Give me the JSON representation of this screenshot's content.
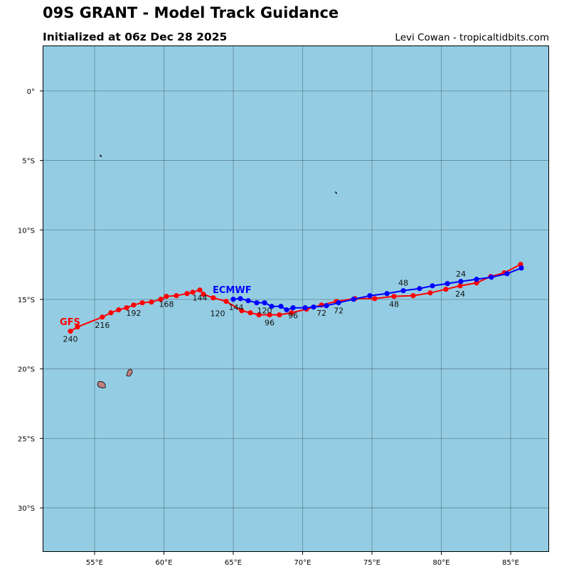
{
  "header": {
    "title": "09S GRANT - Model Track Guidance",
    "subtitle": "Initialized at 06z Dec 28 2025",
    "credit": "Levi Cowan - tropicaltidbits.com"
  },
  "map": {
    "ocean_color": "#94cde3",
    "land_color": "#c08080",
    "lon_range": [
      51.26,
      87.77
    ],
    "lat_range": [
      -33.17,
      3.27
    ],
    "grid": true,
    "lon_ticks": [
      {
        "value": 55,
        "label": "55°E"
      },
      {
        "value": 60,
        "label": "60°E"
      },
      {
        "value": 65,
        "label": "65°E"
      },
      {
        "value": 70,
        "label": "70°E"
      },
      {
        "value": 75,
        "label": "75°E"
      },
      {
        "value": 80,
        "label": "80°E"
      },
      {
        "value": 85,
        "label": "85°E"
      }
    ],
    "lat_ticks": [
      {
        "value": 0,
        "label": "0°"
      },
      {
        "value": -5,
        "label": "5°S"
      },
      {
        "value": -10,
        "label": "10°S"
      },
      {
        "value": -15,
        "label": "15°S"
      },
      {
        "value": -20,
        "label": "20°S"
      },
      {
        "value": -25,
        "label": "25°S"
      },
      {
        "value": -30,
        "label": "30°S"
      }
    ]
  },
  "chart_data": {
    "type": "line",
    "series": [
      {
        "name": "GFS",
        "color": "#ff0000",
        "points": [
          [
            85.72,
            -12.48
          ],
          [
            84.54,
            -13.09
          ],
          [
            83.56,
            -13.35
          ],
          [
            82.54,
            -13.81
          ],
          [
            81.36,
            -14.02
          ],
          [
            80.33,
            -14.27
          ],
          [
            79.2,
            -14.53
          ],
          [
            77.97,
            -14.73
          ],
          [
            76.59,
            -14.78
          ],
          [
            75.2,
            -14.94
          ],
          [
            73.77,
            -14.94
          ],
          [
            72.44,
            -15.14
          ],
          [
            71.36,
            -15.4
          ],
          [
            70.28,
            -15.7
          ],
          [
            69.2,
            -15.96
          ],
          [
            68.33,
            -16.11
          ],
          [
            67.62,
            -16.11
          ],
          [
            66.85,
            -16.11
          ],
          [
            66.23,
            -15.96
          ],
          [
            65.61,
            -15.81
          ],
          [
            64.49,
            -15.14
          ],
          [
            63.56,
            -14.89
          ],
          [
            62.85,
            -14.63
          ],
          [
            62.59,
            -14.32
          ],
          [
            62.08,
            -14.48
          ],
          [
            61.67,
            -14.58
          ],
          [
            60.9,
            -14.73
          ],
          [
            60.18,
            -14.78
          ],
          [
            59.77,
            -14.99
          ],
          [
            59.1,
            -15.19
          ],
          [
            58.44,
            -15.24
          ],
          [
            57.82,
            -15.4
          ],
          [
            57.31,
            -15.6
          ],
          [
            56.74,
            -15.75
          ],
          [
            56.18,
            -15.96
          ],
          [
            55.56,
            -16.27
          ],
          [
            53.77,
            -16.98
          ],
          [
            53.26,
            -17.29
          ]
        ],
        "hour_labels": [
          {
            "hour": "24",
            "lon": 81.36,
            "lat": -14.02
          },
          {
            "hour": "48",
            "lon": 76.59,
            "lat": -14.78
          },
          {
            "hour": "72",
            "lon": 71.36,
            "lat": -15.4
          },
          {
            "hour": "96",
            "lon": 67.62,
            "lat": -16.11
          },
          {
            "hour": "120",
            "lon": 64.49,
            "lat": -15.14
          },
          {
            "hour": "144",
            "lon": 62.59,
            "lat": -14.32
          },
          {
            "hour": "168",
            "lon": 60.18,
            "lat": -14.78
          },
          {
            "hour": "192",
            "lon": 57.82,
            "lat": -15.4
          },
          {
            "hour": "216",
            "lon": 55.56,
            "lat": -16.27
          },
          {
            "hour": "240",
            "lon": 53.26,
            "lat": -17.29
          }
        ]
      },
      {
        "name": "ECMWF",
        "color": "#0000ff",
        "points": [
          [
            85.77,
            -12.74
          ],
          [
            84.74,
            -13.15
          ],
          [
            83.61,
            -13.4
          ],
          [
            82.54,
            -13.55
          ],
          [
            81.41,
            -13.71
          ],
          [
            80.44,
            -13.86
          ],
          [
            79.36,
            -14.02
          ],
          [
            78.43,
            -14.22
          ],
          [
            77.26,
            -14.37
          ],
          [
            76.08,
            -14.58
          ],
          [
            74.85,
            -14.73
          ],
          [
            73.67,
            -14.99
          ],
          [
            72.59,
            -15.24
          ],
          [
            71.72,
            -15.45
          ],
          [
            70.79,
            -15.55
          ],
          [
            70.18,
            -15.6
          ],
          [
            69.31,
            -15.6
          ],
          [
            68.85,
            -15.75
          ],
          [
            68.44,
            -15.5
          ],
          [
            67.77,
            -15.5
          ],
          [
            67.26,
            -15.24
          ],
          [
            66.69,
            -15.24
          ],
          [
            66.08,
            -15.09
          ],
          [
            65.51,
            -14.94
          ],
          [
            65.0,
            -14.99
          ]
        ],
        "hour_labels": [
          {
            "hour": "24",
            "lon": 81.41,
            "lat": -13.71
          },
          {
            "hour": "48",
            "lon": 77.26,
            "lat": -14.37
          },
          {
            "hour": "72",
            "lon": 72.59,
            "lat": -15.24
          },
          {
            "hour": "96",
            "lon": 69.31,
            "lat": -15.6
          },
          {
            "hour": "120",
            "lon": 67.26,
            "lat": -15.24
          },
          {
            "hour": "144",
            "lon": 65.0,
            "lat": -14.99
          }
        ]
      }
    ]
  }
}
